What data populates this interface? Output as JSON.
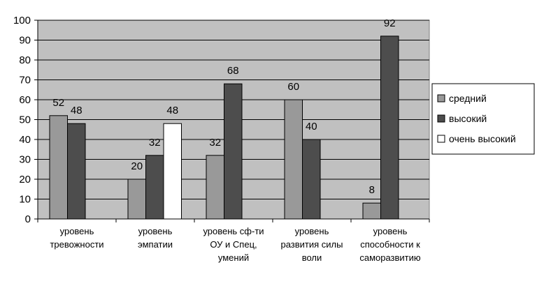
{
  "chart_data": {
    "type": "bar",
    "categories": [
      [
        "уровень",
        "тревожности"
      ],
      [
        "уровень",
        "эмпатии"
      ],
      [
        "уровень сф-ти",
        "ОУ и Спец,",
        "умений"
      ],
      [
        "уровень",
        "развития силы",
        "воли"
      ],
      [
        "уровень",
        "способности к",
        "саморазвитию"
      ]
    ],
    "series": [
      {
        "name": "средний",
        "color": "#999999",
        "values": [
          52,
          20,
          32,
          60,
          8
        ]
      },
      {
        "name": "высокий",
        "color": "#4d4d4d",
        "values": [
          48,
          32,
          68,
          40,
          92
        ]
      },
      {
        "name": "очень высокий",
        "color": "#ffffff",
        "values": [
          null,
          48,
          null,
          null,
          null
        ]
      }
    ],
    "ylim": [
      0,
      100
    ],
    "yticks": [
      0,
      10,
      20,
      30,
      40,
      50,
      60,
      70,
      80,
      90,
      100
    ],
    "grid": true,
    "plot_background": "#c0c0c0",
    "legend_position": "right",
    "title": "",
    "xlabel": "",
    "ylabel": ""
  }
}
